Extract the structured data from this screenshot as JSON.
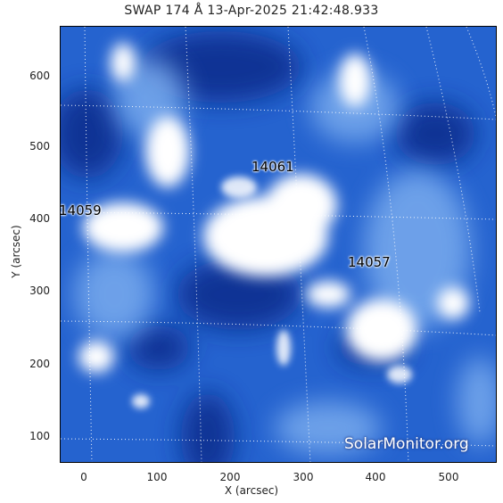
{
  "title": "SWAP 174 Å 13-Apr-2025 21:42:48.933",
  "axes": {
    "xlabel": "X (arcsec)",
    "ylabel": "Y (arcsec)",
    "xticks": [
      "0",
      "100",
      "200",
      "300",
      "400",
      "500"
    ],
    "yticks": [
      "100",
      "200",
      "300",
      "400",
      "500",
      "600"
    ],
    "xlim": [
      -30,
      570
    ],
    "ylim": [
      65,
      665
    ]
  },
  "active_regions": [
    {
      "id": "14061",
      "label": "14061"
    },
    {
      "id": "14059",
      "label": "14059"
    },
    {
      "id": "14057",
      "label": "14057"
    }
  ],
  "watermark": "SolarMonitor.org",
  "colors": {
    "background": "#1e5fd0",
    "bright": "#ffffff",
    "dark": "#0a2b8a",
    "grid": "#ffffff"
  }
}
